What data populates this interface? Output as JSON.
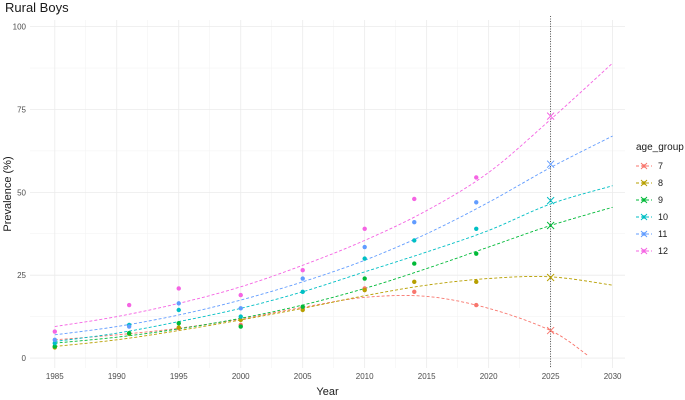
{
  "chart_data": {
    "type": "scatter",
    "title": "Rural Boys",
    "xlabel": "Year",
    "ylabel": "Prevalence (%)",
    "xlim": [
      1983,
      2031
    ],
    "ylim": [
      -3,
      102
    ],
    "x_ticks": [
      1985,
      1990,
      1995,
      2000,
      2005,
      2010,
      2015,
      2020,
      2025,
      2030
    ],
    "y_ticks": [
      0,
      25,
      50,
      75,
      100
    ],
    "grid": true,
    "vertical_reference_line": 2025,
    "legend": {
      "title": "age_group",
      "position": "right"
    },
    "x": [
      1985,
      1991,
      1995,
      2000,
      2005,
      2010,
      2014,
      2019
    ],
    "projection_year": 2025,
    "series": [
      {
        "name": "7",
        "color": "#F8766D",
        "values": [
          3.5,
          7.5,
          9.0,
          10.0,
          15.0,
          21.0,
          20.0,
          16.0
        ],
        "projection": 8.3,
        "trend": [
          [
            1985,
            5.5
          ],
          [
            1990,
            7.0
          ],
          [
            1995,
            9.0
          ],
          [
            2000,
            11.8
          ],
          [
            2005,
            15.3
          ],
          [
            2010,
            18.3
          ],
          [
            2015,
            18.6
          ],
          [
            2020,
            15.0
          ],
          [
            2025,
            8.3
          ],
          [
            2028,
            0.8
          ]
        ]
      },
      {
        "name": "8",
        "color": "#B79F00",
        "values": [
          3.2,
          7.3,
          9.2,
          11.5,
          14.5,
          20.5,
          23.0,
          23.0
        ],
        "projection": 24.3,
        "trend": [
          [
            1985,
            3.5
          ],
          [
            1990,
            5.5
          ],
          [
            1995,
            8.3
          ],
          [
            2000,
            11.5
          ],
          [
            2005,
            15.0
          ],
          [
            2010,
            18.8
          ],
          [
            2015,
            22.0
          ],
          [
            2020,
            24.0
          ],
          [
            2025,
            24.5
          ],
          [
            2030,
            22.0
          ]
        ]
      },
      {
        "name": "9",
        "color": "#00BA38",
        "values": [
          3.5,
          7.5,
          10.5,
          9.5,
          15.5,
          24.0,
          28.5,
          31.5
        ],
        "projection": 40.0,
        "trend": [
          [
            1985,
            4.5
          ],
          [
            1990,
            6.3
          ],
          [
            1995,
            8.8
          ],
          [
            2000,
            12.0
          ],
          [
            2005,
            16.0
          ],
          [
            2010,
            21.0
          ],
          [
            2015,
            27.0
          ],
          [
            2020,
            33.5
          ],
          [
            2025,
            40.0
          ],
          [
            2030,
            45.5
          ]
        ]
      },
      {
        "name": "10",
        "color": "#00BFC4",
        "values": [
          4.5,
          10.0,
          14.5,
          12.5,
          20.0,
          30.0,
          35.5,
          39.0
        ],
        "projection": 47.5,
        "trend": [
          [
            1985,
            5.0
          ],
          [
            1990,
            7.5
          ],
          [
            1995,
            11.0
          ],
          [
            2000,
            15.0
          ],
          [
            2005,
            20.0
          ],
          [
            2010,
            26.0
          ],
          [
            2015,
            32.0
          ],
          [
            2020,
            38.5
          ],
          [
            2025,
            46.5
          ],
          [
            2030,
            52.0
          ]
        ]
      },
      {
        "name": "11",
        "color": "#619CFF",
        "values": [
          5.5,
          9.5,
          16.5,
          15.0,
          24.0,
          33.5,
          41.0,
          47.0
        ],
        "projection": 58.5,
        "trend": [
          [
            1985,
            7.0
          ],
          [
            1990,
            9.5
          ],
          [
            1995,
            13.0
          ],
          [
            2000,
            17.5
          ],
          [
            2005,
            23.0
          ],
          [
            2010,
            29.5
          ],
          [
            2015,
            37.5
          ],
          [
            2020,
            47.0
          ],
          [
            2025,
            57.5
          ],
          [
            2030,
            67.0
          ]
        ]
      },
      {
        "name": "12",
        "color": "#F564E3",
        "values": [
          8.0,
          16.0,
          21.0,
          19.0,
          26.5,
          39.0,
          48.0,
          54.5
        ],
        "projection": 73.0,
        "trend": [
          [
            1985,
            9.5
          ],
          [
            1990,
            12.5
          ],
          [
            1995,
            16.5
          ],
          [
            2000,
            21.5
          ],
          [
            2005,
            28.0
          ],
          [
            2010,
            35.5
          ],
          [
            2015,
            44.5
          ],
          [
            2020,
            56.0
          ],
          [
            2025,
            72.0
          ],
          [
            2030,
            89.0
          ]
        ]
      }
    ]
  }
}
